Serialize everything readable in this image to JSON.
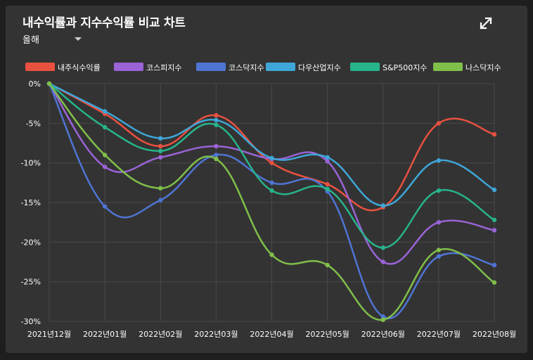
{
  "header": {
    "title": "내수익률과 지수수익률 비교 차트",
    "period_label": "올해",
    "expand_icon": "expand-icon"
  },
  "colors": {
    "background": "#333333",
    "grid": "#4a4a4a"
  },
  "chart_data": {
    "type": "line",
    "title": "내수익률과 지수수익률 비교 차트",
    "xlabel": "",
    "ylabel": "",
    "categories": [
      "2021년12월",
      "2022년01월",
      "2022년02월",
      "2022년03월",
      "2022년04월",
      "2022년05월",
      "2022년06월",
      "2022년07월",
      "2022년08월"
    ],
    "ylim": [
      -30,
      0
    ],
    "yticks": [
      0,
      -5,
      -10,
      -15,
      -20,
      -25,
      -30
    ],
    "ytick_labels": [
      "0%",
      "-5%",
      "-10%",
      "-15%",
      "-20%",
      "-25%",
      "-30%"
    ],
    "grid": true,
    "legend_position": "top",
    "series": [
      {
        "name": "내주식수익률",
        "color": "#e8513f",
        "values": [
          0,
          -3.8,
          -7.9,
          -4.0,
          -10.0,
          -12.7,
          -15.6,
          -5.0,
          -6.4
        ]
      },
      {
        "name": "코스피지수",
        "color": "#9a63d6",
        "values": [
          0,
          -10.5,
          -9.3,
          -7.9,
          -9.5,
          -9.8,
          -22.5,
          -17.5,
          -18.5
        ]
      },
      {
        "name": "코스닥지수",
        "color": "#4f74d3",
        "values": [
          0,
          -15.5,
          -14.7,
          -9.0,
          -12.5,
          -13.6,
          -29.4,
          -21.8,
          -22.9
        ]
      },
      {
        "name": "다우산업지수",
        "color": "#3fa6d8",
        "values": [
          0,
          -3.5,
          -6.9,
          -4.6,
          -9.4,
          -9.3,
          -15.4,
          -9.7,
          -13.4
        ]
      },
      {
        "name": "S&P500지수",
        "color": "#27b48b",
        "values": [
          0,
          -5.5,
          -8.5,
          -5.2,
          -13.5,
          -13.3,
          -20.7,
          -13.5,
          -17.2
        ]
      },
      {
        "name": "나스닥지수",
        "color": "#80bf4a",
        "values": [
          0,
          -9.0,
          -13.2,
          -9.5,
          -21.6,
          -22.9,
          -29.8,
          -21.0,
          -25.1
        ]
      }
    ]
  }
}
